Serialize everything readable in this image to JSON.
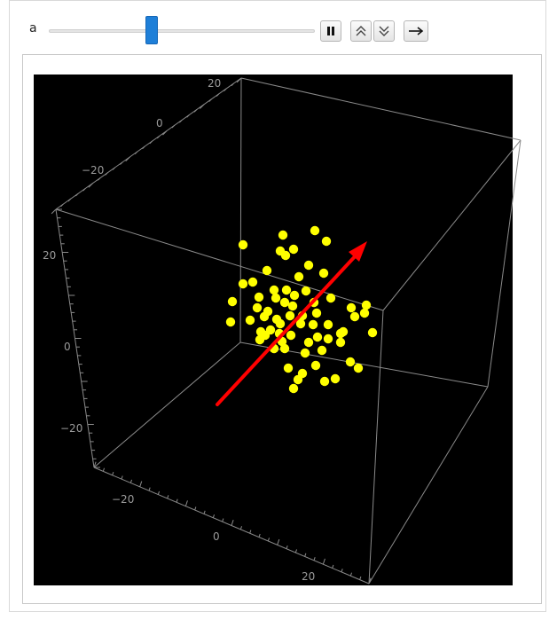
{
  "controls": {
    "parameter_label": "a",
    "slider_value": 0.38,
    "buttons": [
      {
        "name": "pause-button",
        "icon": "pause-icon"
      },
      {
        "name": "faster-button",
        "icon": "double-chevron-up-icon"
      },
      {
        "name": "slower-button",
        "icon": "double-chevron-down-icon"
      },
      {
        "name": "direction-button",
        "icon": "arrow-right-icon"
      }
    ]
  },
  "plot": {
    "background": "#000000",
    "box_color": "#8a8a8a",
    "point_color": "#ffff00",
    "arrow_color": "#ff0000",
    "tick_labels": {
      "top_axis": [
        "20",
        "0",
        "-20"
      ],
      "left_axis": [
        "20",
        "0",
        "-20"
      ],
      "bottom_axis": [
        "-20",
        "0",
        "20"
      ]
    }
  },
  "chart_data": {
    "type": "scatter",
    "projection": "3d",
    "axes": {
      "xlim": [
        -30,
        30
      ],
      "ylim": [
        -30,
        30
      ],
      "zlim": [
        -30,
        30
      ]
    },
    "grid": false,
    "point_count": 68,
    "vector": {
      "from": "lower-left-front",
      "to": "upper-right-back"
    }
  }
}
